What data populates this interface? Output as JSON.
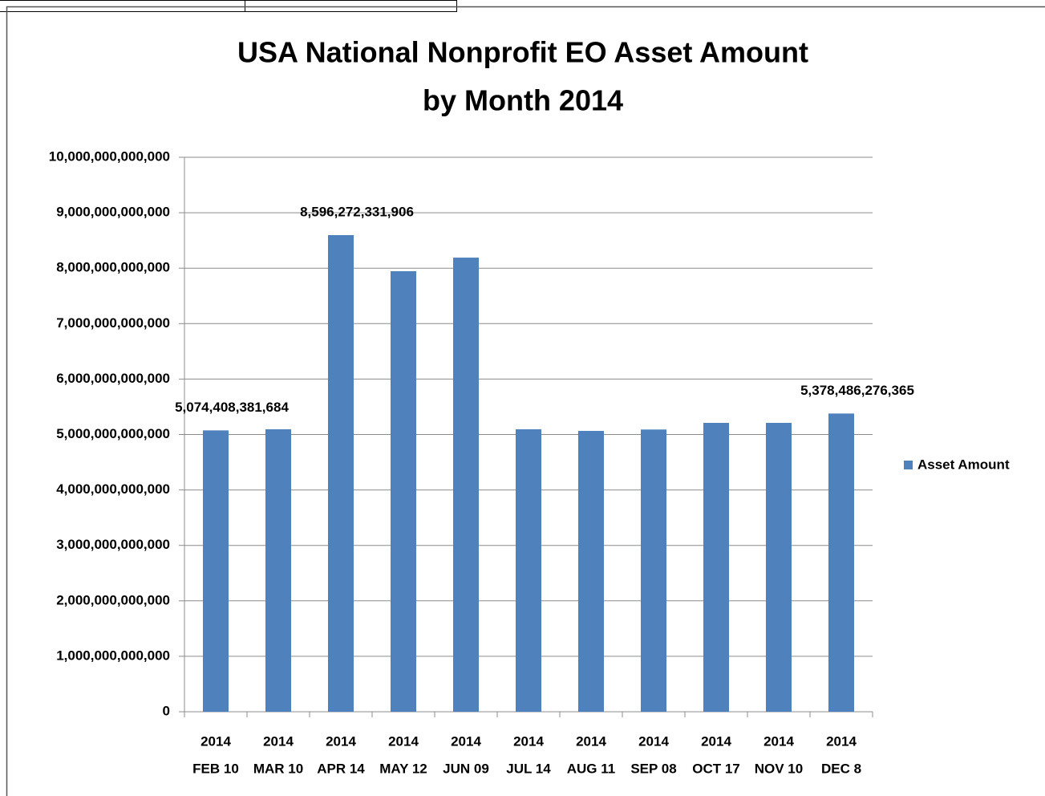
{
  "chart_data": {
    "type": "bar",
    "title": [
      "USA National Nonprofit EO Asset Amount",
      "by Month 2014"
    ],
    "categories": [
      [
        "2014",
        "FEB 10"
      ],
      [
        "2014",
        "MAR 10"
      ],
      [
        "2014",
        "APR 14"
      ],
      [
        "2014",
        "MAY 12"
      ],
      [
        "2014",
        "JUN 09"
      ],
      [
        "2014",
        "JUL 14"
      ],
      [
        "2014",
        "AUG 11"
      ],
      [
        "2014",
        "SEP 08"
      ],
      [
        "2014",
        "OCT 17"
      ],
      [
        "2014",
        "NOV 10"
      ],
      [
        "2014",
        "DEC 8"
      ]
    ],
    "series": [
      {
        "name": "Asset Amount",
        "color": "#4f81bd",
        "values": [
          5074408381684,
          5094000000000,
          8596272331906,
          7945000000000,
          8190000000000,
          5094000000000,
          5065000000000,
          5090000000000,
          5210000000000,
          5210000000000,
          5378486276365
        ],
        "value_labels": [
          "5,074,408,381,684",
          null,
          "8,596,272,331,906",
          null,
          null,
          null,
          null,
          null,
          null,
          null,
          "5,378,486,276,365"
        ]
      }
    ],
    "ylim": [
      0,
      10000000000000
    ],
    "yticks": [
      0,
      {
        "value": 1000000000000,
        "label": "1,000,000,000,000"
      },
      {
        "value": 2000000000000,
        "label": "2,000,000,000,000"
      },
      {
        "value": 3000000000000,
        "label": "3,000,000,000,000"
      },
      {
        "value": 4000000000000,
        "label": "4,000,000,000,000"
      },
      {
        "value": 5000000000000,
        "label": "5,000,000,000,000"
      },
      {
        "value": 6000000000000,
        "label": "6,000,000,000,000"
      },
      {
        "value": 7000000000000,
        "label": "7,000,000,000,000"
      },
      {
        "value": 8000000000000,
        "label": "8,000,000,000,000"
      },
      {
        "value": 9000000000000,
        "label": "9,000,000,000,000"
      },
      {
        "value": 10000000000000,
        "label": "10,000,000,000,000"
      }
    ],
    "grid": true,
    "legend": "right"
  }
}
